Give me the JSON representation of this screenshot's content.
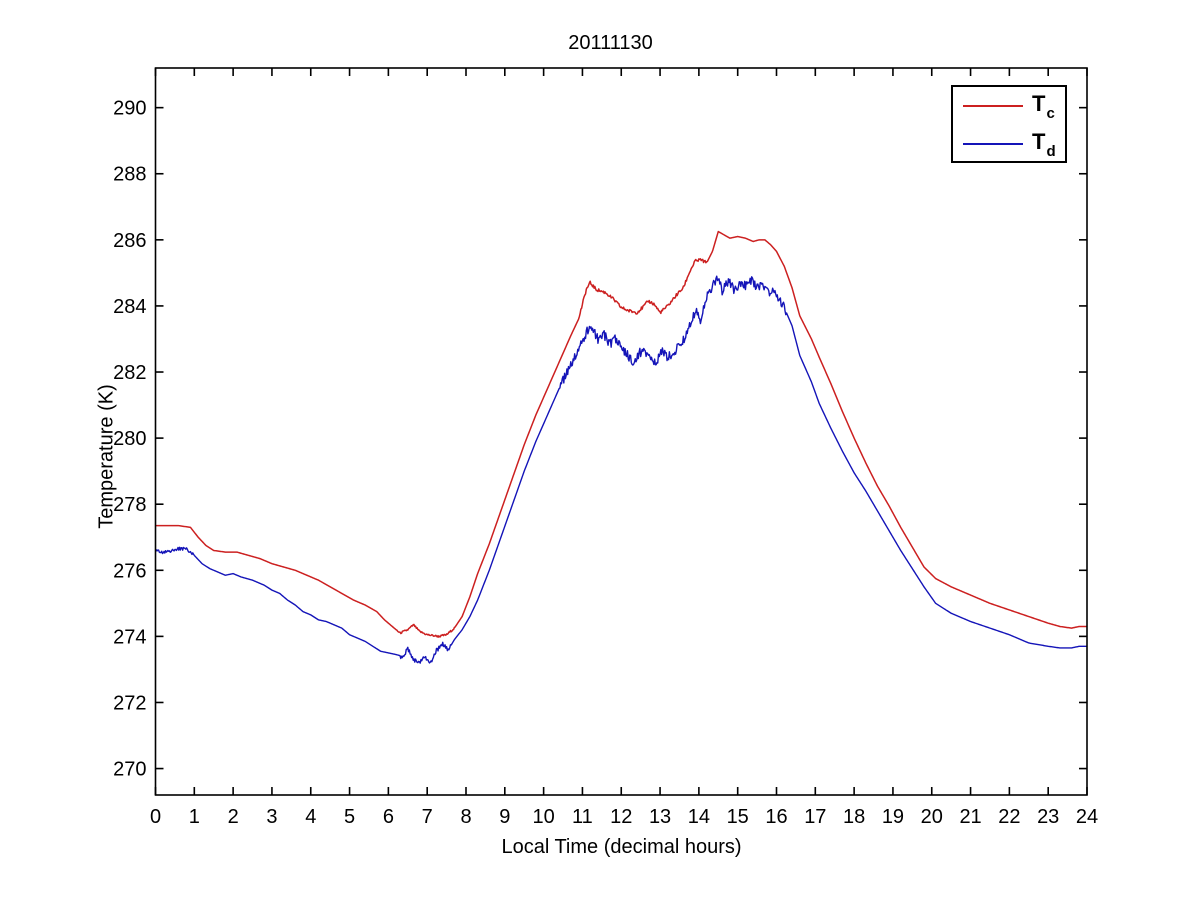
{
  "figure": {
    "background": "#ffffff",
    "axis_color": "#000000"
  },
  "legend": {
    "entries": [
      {
        "main": "T",
        "sub": "c",
        "series": "tc"
      },
      {
        "main": "T",
        "sub": "d",
        "series": "td"
      }
    ]
  },
  "chart_data": {
    "type": "line",
    "title": "20111130",
    "xlabel": "Local Time (decimal hours)",
    "ylabel": "Temperature (K)",
    "xlim": [
      0,
      24
    ],
    "ylim": [
      269.2,
      291.2
    ],
    "xticks": [
      0,
      1,
      2,
      3,
      4,
      5,
      6,
      7,
      8,
      9,
      10,
      11,
      12,
      13,
      14,
      15,
      16,
      17,
      18,
      19,
      20,
      21,
      22,
      23,
      24
    ],
    "yticks": [
      270,
      272,
      274,
      276,
      278,
      280,
      282,
      284,
      286,
      288,
      290
    ],
    "grid": false,
    "box": true,
    "tick_direction": "in",
    "legend_position": "northeast",
    "series": [
      {
        "id": "tc",
        "name": "T_c",
        "color": "#cc2020",
        "width": 1.5,
        "noise": [
          {
            "from": 6.2,
            "to": 7.7,
            "amp": 0.03
          },
          {
            "from": 10.9,
            "to": 14.2,
            "amp": 0.05
          }
        ],
        "points": [
          [
            0,
            277.35
          ],
          [
            0.3,
            277.35
          ],
          [
            0.6,
            277.35
          ],
          [
            0.9,
            277.3
          ],
          [
            1.1,
            277.0
          ],
          [
            1.3,
            276.75
          ],
          [
            1.5,
            276.6
          ],
          [
            1.8,
            276.55
          ],
          [
            2.1,
            276.55
          ],
          [
            2.4,
            276.45
          ],
          [
            2.7,
            276.35
          ],
          [
            3.0,
            276.2
          ],
          [
            3.3,
            276.1
          ],
          [
            3.6,
            276.0
          ],
          [
            3.9,
            275.85
          ],
          [
            4.2,
            275.7
          ],
          [
            4.5,
            275.5
          ],
          [
            4.8,
            275.3
          ],
          [
            5.1,
            275.1
          ],
          [
            5.4,
            274.95
          ],
          [
            5.7,
            274.75
          ],
          [
            5.9,
            274.5
          ],
          [
            6.1,
            274.3
          ],
          [
            6.3,
            274.1
          ],
          [
            6.5,
            274.2
          ],
          [
            6.65,
            274.35
          ],
          [
            6.8,
            274.15
          ],
          [
            7.0,
            274.05
          ],
          [
            7.3,
            274.0
          ],
          [
            7.5,
            274.05
          ],
          [
            7.7,
            274.25
          ],
          [
            7.9,
            274.6
          ],
          [
            8.1,
            275.2
          ],
          [
            8.3,
            275.9
          ],
          [
            8.6,
            276.8
          ],
          [
            8.9,
            277.8
          ],
          [
            9.2,
            278.8
          ],
          [
            9.5,
            279.8
          ],
          [
            9.8,
            280.7
          ],
          [
            10.1,
            281.5
          ],
          [
            10.4,
            282.3
          ],
          [
            10.7,
            283.1
          ],
          [
            10.9,
            283.6
          ],
          [
            11.1,
            284.5
          ],
          [
            11.2,
            284.7
          ],
          [
            11.35,
            284.5
          ],
          [
            11.6,
            284.4
          ],
          [
            11.8,
            284.2
          ],
          [
            12.0,
            283.95
          ],
          [
            12.2,
            283.85
          ],
          [
            12.4,
            283.8
          ],
          [
            12.55,
            283.95
          ],
          [
            12.7,
            284.15
          ],
          [
            12.85,
            284.05
          ],
          [
            13.0,
            283.8
          ],
          [
            13.2,
            284.0
          ],
          [
            13.4,
            284.3
          ],
          [
            13.6,
            284.55
          ],
          [
            13.75,
            285.0
          ],
          [
            13.9,
            285.35
          ],
          [
            14.05,
            285.4
          ],
          [
            14.2,
            285.3
          ],
          [
            14.35,
            285.65
          ],
          [
            14.5,
            286.25
          ],
          [
            14.65,
            286.15
          ],
          [
            14.8,
            286.05
          ],
          [
            15.0,
            286.1
          ],
          [
            15.2,
            286.05
          ],
          [
            15.4,
            285.95
          ],
          [
            15.55,
            286.0
          ],
          [
            15.7,
            286.0
          ],
          [
            15.85,
            285.85
          ],
          [
            16.0,
            285.65
          ],
          [
            16.2,
            285.2
          ],
          [
            16.4,
            284.55
          ],
          [
            16.6,
            283.7
          ],
          [
            16.9,
            283.0
          ],
          [
            17.1,
            282.45
          ],
          [
            17.4,
            281.65
          ],
          [
            17.7,
            280.8
          ],
          [
            18.0,
            280.0
          ],
          [
            18.3,
            279.25
          ],
          [
            18.6,
            278.55
          ],
          [
            18.9,
            277.95
          ],
          [
            19.2,
            277.3
          ],
          [
            19.5,
            276.7
          ],
          [
            19.8,
            276.1
          ],
          [
            20.1,
            275.75
          ],
          [
            20.5,
            275.5
          ],
          [
            21.0,
            275.25
          ],
          [
            21.5,
            275.0
          ],
          [
            22.0,
            274.8
          ],
          [
            22.5,
            274.6
          ],
          [
            23.0,
            274.4
          ],
          [
            23.3,
            274.3
          ],
          [
            23.6,
            274.25
          ],
          [
            23.8,
            274.3
          ],
          [
            24,
            274.3
          ]
        ]
      },
      {
        "id": "td",
        "name": "T_d",
        "color": "#1414b8",
        "width": 1.4,
        "noise": [
          {
            "from": 0.0,
            "to": 1.0,
            "amp": 0.05
          },
          {
            "from": 6.3,
            "to": 7.6,
            "amp": 0.08
          },
          {
            "from": 10.4,
            "to": 16.25,
            "amp": 0.14
          }
        ],
        "points": [
          [
            0,
            276.6
          ],
          [
            0.2,
            276.55
          ],
          [
            0.4,
            276.6
          ],
          [
            0.6,
            276.65
          ],
          [
            0.8,
            276.65
          ],
          [
            1.0,
            276.45
          ],
          [
            1.2,
            276.2
          ],
          [
            1.4,
            276.05
          ],
          [
            1.6,
            275.95
          ],
          [
            1.8,
            275.85
          ],
          [
            2.0,
            275.9
          ],
          [
            2.2,
            275.8
          ],
          [
            2.5,
            275.7
          ],
          [
            2.8,
            275.55
          ],
          [
            3.0,
            275.4
          ],
          [
            3.2,
            275.3
          ],
          [
            3.4,
            275.1
          ],
          [
            3.6,
            274.95
          ],
          [
            3.8,
            274.75
          ],
          [
            4.0,
            274.65
          ],
          [
            4.2,
            274.5
          ],
          [
            4.4,
            274.45
          ],
          [
            4.6,
            274.35
          ],
          [
            4.8,
            274.25
          ],
          [
            5.0,
            274.05
          ],
          [
            5.2,
            273.95
          ],
          [
            5.4,
            273.85
          ],
          [
            5.6,
            273.7
          ],
          [
            5.8,
            273.55
          ],
          [
            6.0,
            273.5
          ],
          [
            6.2,
            273.45
          ],
          [
            6.35,
            273.4
          ],
          [
            6.5,
            273.6
          ],
          [
            6.65,
            273.3
          ],
          [
            6.8,
            273.2
          ],
          [
            6.95,
            273.4
          ],
          [
            7.1,
            273.2
          ],
          [
            7.25,
            273.6
          ],
          [
            7.4,
            273.75
          ],
          [
            7.55,
            273.6
          ],
          [
            7.7,
            273.9
          ],
          [
            7.9,
            274.2
          ],
          [
            8.1,
            274.6
          ],
          [
            8.3,
            275.1
          ],
          [
            8.6,
            276.0
          ],
          [
            8.9,
            277.0
          ],
          [
            9.2,
            278.0
          ],
          [
            9.5,
            279.0
          ],
          [
            9.8,
            279.9
          ],
          [
            10.1,
            280.7
          ],
          [
            10.4,
            281.5
          ],
          [
            10.7,
            282.2
          ],
          [
            10.9,
            282.7
          ],
          [
            11.1,
            283.2
          ],
          [
            11.25,
            283.35
          ],
          [
            11.4,
            283.0
          ],
          [
            11.55,
            283.15
          ],
          [
            11.7,
            282.85
          ],
          [
            11.85,
            283.0
          ],
          [
            12.0,
            282.75
          ],
          [
            12.15,
            282.55
          ],
          [
            12.3,
            282.25
          ],
          [
            12.45,
            282.55
          ],
          [
            12.6,
            282.7
          ],
          [
            12.75,
            282.35
          ],
          [
            12.9,
            282.25
          ],
          [
            13.05,
            282.65
          ],
          [
            13.2,
            282.45
          ],
          [
            13.35,
            282.6
          ],
          [
            13.5,
            282.8
          ],
          [
            13.65,
            283.05
          ],
          [
            13.8,
            283.5
          ],
          [
            13.95,
            283.9
          ],
          [
            14.05,
            283.55
          ],
          [
            14.2,
            284.25
          ],
          [
            14.35,
            284.6
          ],
          [
            14.5,
            284.85
          ],
          [
            14.6,
            284.45
          ],
          [
            14.75,
            284.75
          ],
          [
            14.9,
            284.5
          ],
          [
            15.05,
            284.65
          ],
          [
            15.2,
            284.6
          ],
          [
            15.35,
            284.8
          ],
          [
            15.5,
            284.55
          ],
          [
            15.65,
            284.6
          ],
          [
            15.8,
            284.45
          ],
          [
            16.0,
            284.35
          ],
          [
            16.2,
            283.95
          ],
          [
            16.4,
            283.4
          ],
          [
            16.6,
            282.5
          ],
          [
            16.9,
            281.7
          ],
          [
            17.1,
            281.05
          ],
          [
            17.4,
            280.3
          ],
          [
            17.7,
            279.6
          ],
          [
            18.0,
            278.95
          ],
          [
            18.3,
            278.4
          ],
          [
            18.6,
            277.8
          ],
          [
            18.9,
            277.2
          ],
          [
            19.2,
            276.6
          ],
          [
            19.5,
            276.05
          ],
          [
            19.8,
            275.5
          ],
          [
            20.1,
            275.0
          ],
          [
            20.5,
            274.7
          ],
          [
            21.0,
            274.45
          ],
          [
            21.5,
            274.25
          ],
          [
            22.0,
            274.05
          ],
          [
            22.5,
            273.8
          ],
          [
            23.0,
            273.7
          ],
          [
            23.3,
            273.65
          ],
          [
            23.6,
            273.65
          ],
          [
            23.8,
            273.7
          ],
          [
            24,
            273.7
          ]
        ]
      }
    ]
  }
}
